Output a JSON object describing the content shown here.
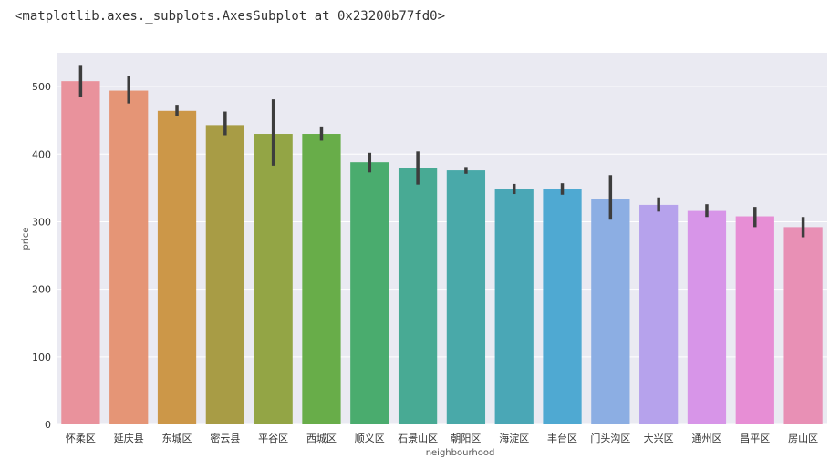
{
  "output_repr": "<matplotlib.axes._subplots.AxesSubplot at 0x23200b77fd0>",
  "chart_data": {
    "type": "bar",
    "xlabel": "neighbourhood",
    "ylabel": "price",
    "ylim": [
      0,
      550
    ],
    "yticks": [
      0,
      100,
      200,
      300,
      400,
      500
    ],
    "grid": true,
    "categories": [
      "怀柔区",
      "延庆县",
      "东城区",
      "密云县",
      "平谷区",
      "西城区",
      "顺义区",
      "石景山区",
      "朝阳区",
      "海淀区",
      "丰台区",
      "门头沟区",
      "大兴区",
      "通州区",
      "昌平区",
      "房山区"
    ],
    "values": [
      508,
      494,
      464,
      443,
      430,
      430,
      388,
      380,
      376,
      348,
      348,
      333,
      325,
      316,
      308,
      292
    ],
    "ci_low": [
      485,
      475,
      457,
      428,
      383,
      420,
      373,
      355,
      371,
      341,
      340,
      303,
      315,
      307,
      292,
      277
    ],
    "ci_high": [
      532,
      515,
      473,
      463,
      481,
      441,
      402,
      404,
      381,
      356,
      357,
      369,
      336,
      326,
      322,
      307
    ],
    "colors": [
      "#e9929c",
      "#e59576",
      "#cc9748",
      "#a89c45",
      "#93a545",
      "#68ad49",
      "#4aac6e",
      "#48aa94",
      "#49a9a9",
      "#4aa7b6",
      "#4fa9d2",
      "#8caee3",
      "#b6a2ec",
      "#d795e8",
      "#e78ed5",
      "#e890b5"
    ]
  }
}
